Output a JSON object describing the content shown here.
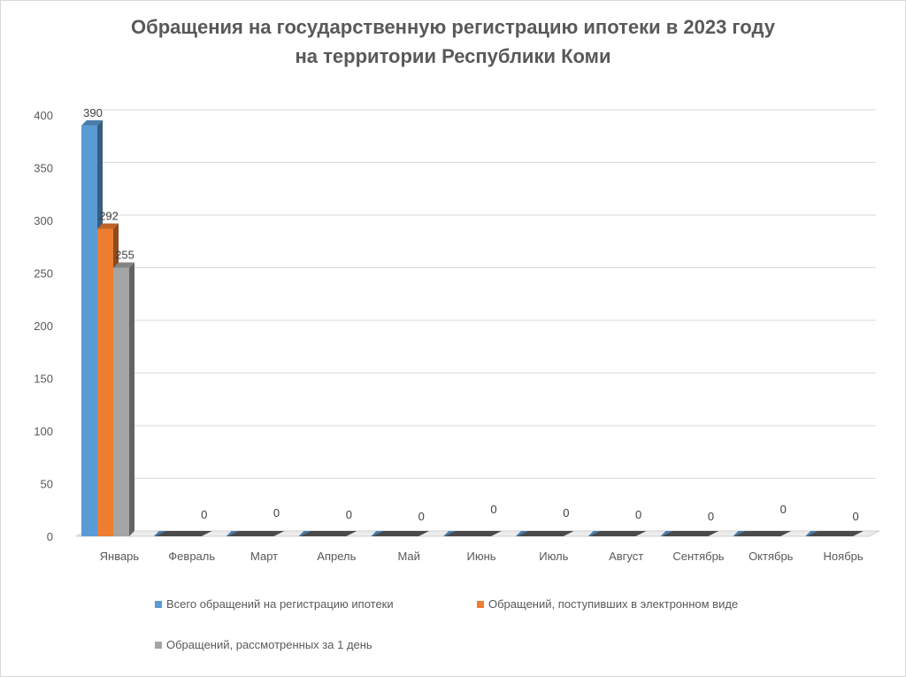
{
  "title_line1": "Обращения на государственную регистрацию ипотеки в 2023 году",
  "title_line2": "на территории Республики Коми",
  "chart_data": {
    "type": "bar",
    "title": "Обращения на государственную регистрацию ипотеки в 2023 году на территории Республики Коми",
    "categories": [
      "Январь",
      "Февраль",
      "Март",
      "Апрель",
      "Май",
      "Июнь",
      "Июль",
      "Август",
      "Сентябрь",
      "Октябрь",
      "Ноябрь"
    ],
    "series": [
      {
        "name": "Всего обращений на регистрацию ипотеки",
        "color": "#5B9BD5",
        "values": [
          390,
          0,
          0,
          0,
          0,
          0,
          0,
          0,
          0,
          0,
          0
        ]
      },
      {
        "name": "Обращений, поступивших в электронном виде",
        "color": "#ED7D31",
        "values": [
          292,
          0,
          0,
          0,
          0,
          0,
          0,
          0,
          0,
          0,
          0
        ]
      },
      {
        "name": "Обращений, рассмотренных за 1 день",
        "color": "#A5A5A5",
        "values": [
          255,
          0,
          0,
          0,
          0,
          0,
          0,
          0,
          0,
          0,
          0
        ]
      }
    ],
    "data_labels": [
      [
        "390"
      ],
      [
        "292"
      ],
      [
        "255"
      ],
      [
        "0",
        "0",
        "0",
        "0",
        "0",
        "0",
        "0",
        "0",
        "0",
        "0"
      ]
    ],
    "ylim": [
      0,
      400
    ],
    "yticks": [
      0,
      50,
      100,
      150,
      200,
      250,
      300,
      350,
      400
    ],
    "grid": true,
    "legend_position": "bottom",
    "style": "3d-clustered-column"
  }
}
